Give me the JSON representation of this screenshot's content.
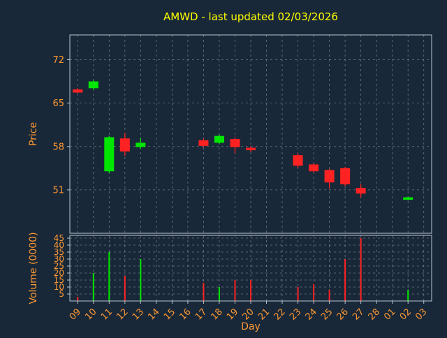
{
  "colors": {
    "background": "#192838",
    "title": "#ffff00",
    "axis_label": "#ff9933",
    "tick_label": "#ff9933",
    "grid": "#cfd8e0",
    "spine": "#b9c4cf",
    "up": "#00e600",
    "down": "#ff2222"
  },
  "chart_data": {
    "type": "candlestick",
    "title": "AMWD - last updated 02/03/2026",
    "xlabel": "Day",
    "ylabel_price": "Price",
    "ylabel_volume": "Volume (0000)",
    "x_ticks": [
      "09",
      "10",
      "11",
      "12",
      "13",
      "14",
      "15",
      "16",
      "17",
      "18",
      "19",
      "20",
      "21",
      "22",
      "23",
      "24",
      "25",
      "26",
      "27",
      "28",
      "01",
      "02",
      "03"
    ],
    "price_ylim": [
      44,
      76
    ],
    "price_yticks": [
      72,
      65,
      58,
      51
    ],
    "volume_ylim": [
      0,
      47
    ],
    "volume_yticks": [
      45,
      40,
      35,
      30,
      25,
      20,
      15,
      10,
      5
    ],
    "grid": true,
    "candles": [
      {
        "day": "09",
        "open": 67.2,
        "high": 67.4,
        "low": 66.6,
        "close": 66.7,
        "volume": 3
      },
      {
        "day": "10",
        "open": 67.4,
        "high": 68.7,
        "low": 67.2,
        "close": 68.5,
        "volume": 20
      },
      {
        "day": "11",
        "open": 54.0,
        "high": 59.7,
        "low": 53.7,
        "close": 59.5,
        "volume": 35
      },
      {
        "day": "12",
        "open": 59.3,
        "high": 60.2,
        "low": 56.5,
        "close": 57.2,
        "volume": 18
      },
      {
        "day": "13",
        "open": 57.9,
        "high": 59.4,
        "low": 57.6,
        "close": 58.6,
        "volume": 30
      },
      {
        "day": "17",
        "open": 59.0,
        "high": 59.3,
        "low": 57.9,
        "close": 58.1,
        "volume": 13
      },
      {
        "day": "18",
        "open": 58.6,
        "high": 59.9,
        "low": 58.4,
        "close": 59.7,
        "volume": 10
      },
      {
        "day": "19",
        "open": 59.2,
        "high": 59.5,
        "low": 56.9,
        "close": 57.9,
        "volume": 15
      },
      {
        "day": "20",
        "open": 57.8,
        "high": 58.0,
        "low": 57.1,
        "close": 57.4,
        "volume": 15
      },
      {
        "day": "23",
        "open": 56.6,
        "high": 56.9,
        "low": 54.6,
        "close": 54.9,
        "volume": 10
      },
      {
        "day": "24",
        "open": 55.1,
        "high": 55.3,
        "low": 53.8,
        "close": 54.0,
        "volume": 12
      },
      {
        "day": "25",
        "open": 54.2,
        "high": 54.4,
        "low": 51.2,
        "close": 52.2,
        "volume": 8
      },
      {
        "day": "26",
        "open": 54.5,
        "high": 54.7,
        "low": 51.6,
        "close": 51.9,
        "volume": 30
      },
      {
        "day": "27",
        "open": 51.3,
        "high": 51.9,
        "low": 49.8,
        "close": 50.4,
        "volume": 45
      },
      {
        "day": "02",
        "open": 49.4,
        "high": 49.9,
        "low": 49.3,
        "close": 49.8,
        "volume": 8
      }
    ]
  }
}
